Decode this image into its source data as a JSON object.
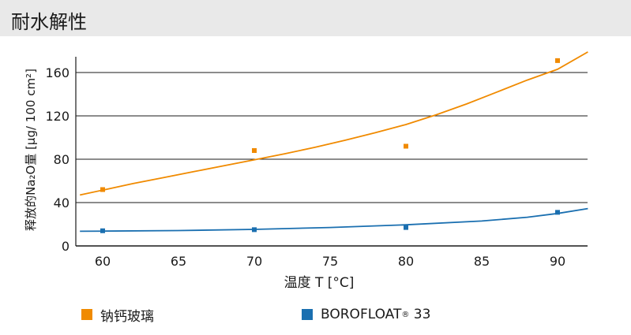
{
  "header": {
    "title": "耐水解性"
  },
  "chart_data": {
    "type": "scatter",
    "title": "耐水解性",
    "xlabel": "温度 T [°C]",
    "ylabel": "释放的Na₂O量 [µg/ 100 cm²]",
    "xlim": [
      58.5,
      92
    ],
    "ylim": [
      0,
      180
    ],
    "x_ticks": [
      60,
      65,
      70,
      75,
      80,
      85,
      90
    ],
    "y_ticks": [
      0,
      40,
      80,
      120,
      160
    ],
    "grid": "horizontal",
    "legend_position": "bottom",
    "series": [
      {
        "name": "钠钙玻璃",
        "color": "#f08a00",
        "points": [
          [
            60,
            52
          ],
          [
            70,
            88
          ],
          [
            80,
            92
          ],
          [
            90,
            171
          ]
        ],
        "trend": [
          [
            58.5,
            47
          ],
          [
            60,
            51.5
          ],
          [
            62,
            57.5
          ],
          [
            64,
            63
          ],
          [
            66,
            68.5
          ],
          [
            68,
            74
          ],
          [
            70,
            79.5
          ],
          [
            72,
            85
          ],
          [
            74,
            91
          ],
          [
            76,
            97.5
          ],
          [
            78,
            104.5
          ],
          [
            80,
            112
          ],
          [
            82,
            121
          ],
          [
            84,
            131
          ],
          [
            86,
            142
          ],
          [
            88,
            153
          ],
          [
            90,
            163
          ],
          [
            92,
            179
          ]
        ]
      },
      {
        "name": "BOROFLOAT",
        "name_sup": "®",
        "name_suffix": " 33",
        "color": "#1a6fb0",
        "points": [
          [
            60,
            14
          ],
          [
            70,
            15
          ],
          [
            80,
            17
          ],
          [
            90,
            31
          ]
        ],
        "trend": [
          [
            58.5,
            13.5
          ],
          [
            60,
            13.7
          ],
          [
            65,
            14.2
          ],
          [
            70,
            15.3
          ],
          [
            75,
            17
          ],
          [
            80,
            19.5
          ],
          [
            85,
            23
          ],
          [
            88,
            26.5
          ],
          [
            90,
            30
          ],
          [
            92,
            34.5
          ]
        ]
      }
    ]
  }
}
